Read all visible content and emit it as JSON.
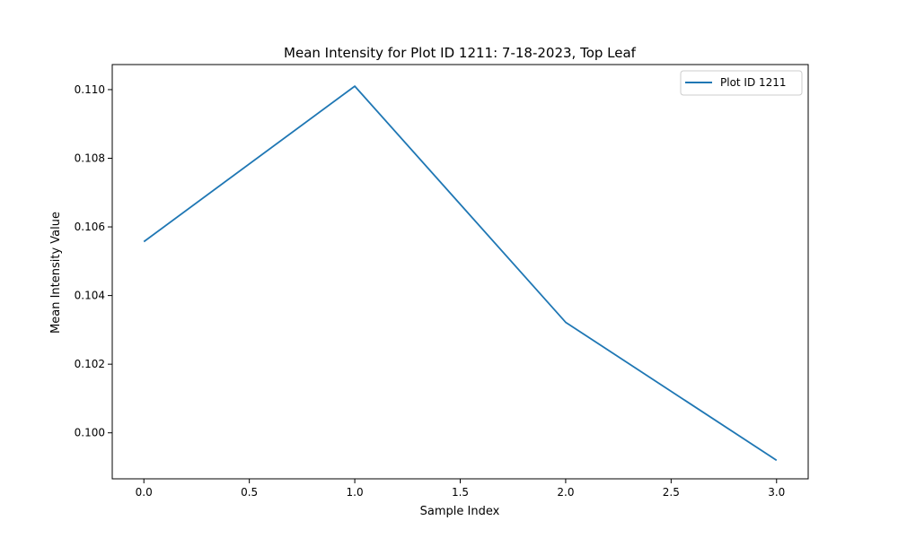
{
  "chart_data": {
    "type": "line",
    "title": "Mean Intensity for Plot ID 1211: 7-18-2023, Top Leaf",
    "xlabel": "Sample Index",
    "ylabel": "Mean Intensity Value",
    "xlim": [
      -0.15,
      3.15
    ],
    "ylim": [
      0.09866,
      0.11073
    ],
    "xticks": [
      0.0,
      0.5,
      1.0,
      1.5,
      2.0,
      2.5,
      3.0
    ],
    "xtick_labels": [
      "0.0",
      "0.5",
      "1.0",
      "1.5",
      "2.0",
      "2.5",
      "3.0"
    ],
    "yticks": [
      0.1,
      0.102,
      0.104,
      0.106,
      0.108,
      0.11
    ],
    "ytick_labels": [
      "0.100",
      "0.102",
      "0.104",
      "0.106",
      "0.108",
      "0.110"
    ],
    "grid": false,
    "legend_position": "top-right",
    "series": [
      {
        "name": "Plot ID 1211",
        "color": "#1f77b4",
        "x": [
          0,
          1,
          2,
          3
        ],
        "y": [
          0.10557,
          0.1101,
          0.10322,
          0.0992
        ]
      }
    ]
  }
}
